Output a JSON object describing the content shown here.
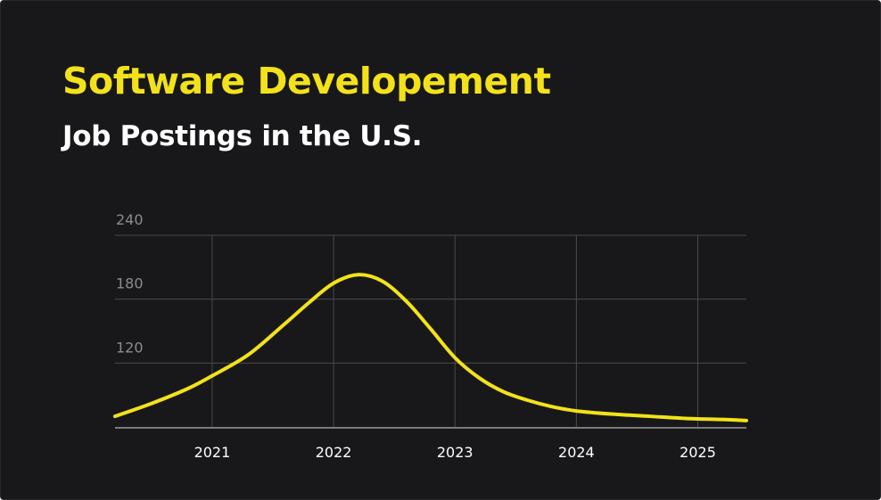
{
  "colors": {
    "background": "#18181a",
    "accent": "#f3e21a",
    "grid": "#4a4a4c",
    "tick_y": "#8c8c8c",
    "text": "#ffffff"
  },
  "chart_data": {
    "type": "line",
    "title": "Software Developement",
    "subtitle": "Job Postings in the U.S.",
    "xlabel": "",
    "ylabel": "",
    "grid": true,
    "x_ticks": [
      "2021",
      "2022",
      "2023",
      "2024",
      "2025"
    ],
    "y_ticks": [
      "240",
      "180",
      "120"
    ],
    "xlim": [
      2020.2,
      2025.4
    ],
    "ylim": [
      60,
      240
    ],
    "series": [
      {
        "x": [
          2020.2,
          2020.5,
          2020.8,
          2021.0,
          2021.3,
          2021.6,
          2021.8,
          2022.0,
          2022.2,
          2022.4,
          2022.6,
          2022.8,
          2023.0,
          2023.2,
          2023.4,
          2023.6,
          2023.8,
          2024.0,
          2024.3,
          2024.6,
          2024.9,
          2025.2,
          2025.4
        ],
        "y": [
          70,
          82,
          96,
          108,
          128,
          157,
          177,
          195,
          203,
          197,
          178,
          152,
          125,
          106,
          93,
          85,
          79,
          75,
          72,
          70,
          68,
          67,
          66
        ]
      }
    ]
  }
}
